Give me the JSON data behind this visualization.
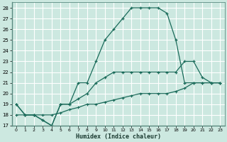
{
  "title": "",
  "xlabel": "Humidex (Indice chaleur)",
  "bg_color": "#cce8e0",
  "grid_color": "#ffffff",
  "line_color": "#1a6b5a",
  "xlim": [
    -0.5,
    23.5
  ],
  "ylim": [
    17,
    28.5
  ],
  "xticks": [
    0,
    1,
    2,
    3,
    4,
    5,
    6,
    7,
    8,
    9,
    10,
    11,
    12,
    13,
    14,
    15,
    16,
    17,
    18,
    19,
    20,
    21,
    22,
    23
  ],
  "yticks": [
    17,
    18,
    19,
    20,
    21,
    22,
    23,
    24,
    25,
    26,
    27,
    28
  ],
  "line1_x": [
    0,
    1,
    2,
    3,
    4,
    5,
    6,
    7,
    8,
    9,
    10,
    11,
    12,
    13,
    14,
    15,
    16,
    17,
    18,
    19,
    20,
    21,
    22,
    23
  ],
  "line1_y": [
    19,
    18,
    18,
    17.5,
    17,
    19,
    19,
    21,
    21,
    23,
    25,
    26,
    27,
    28,
    28,
    28,
    28,
    27.5,
    25,
    21,
    21,
    21,
    21,
    21
  ],
  "line2_x": [
    0,
    1,
    2,
    3,
    4,
    5,
    6,
    7,
    8,
    9,
    10,
    11,
    12,
    13,
    14,
    15,
    16,
    17,
    18,
    19,
    20,
    21,
    22,
    23
  ],
  "line2_y": [
    19,
    18,
    18,
    17.5,
    17,
    19,
    19,
    19.5,
    20,
    21,
    21.5,
    22,
    22,
    22,
    22,
    22,
    22,
    22,
    22,
    23,
    23,
    21.5,
    21,
    21
  ],
  "line3_x": [
    0,
    1,
    2,
    3,
    4,
    5,
    6,
    7,
    8,
    9,
    10,
    11,
    12,
    13,
    14,
    15,
    16,
    17,
    18,
    19,
    20,
    21,
    22,
    23
  ],
  "line3_y": [
    18,
    18,
    18,
    18,
    18,
    18.2,
    18.5,
    18.7,
    19,
    19,
    19.2,
    19.4,
    19.6,
    19.8,
    20,
    20,
    20,
    20,
    20.2,
    20.5,
    21,
    21,
    21,
    21
  ]
}
